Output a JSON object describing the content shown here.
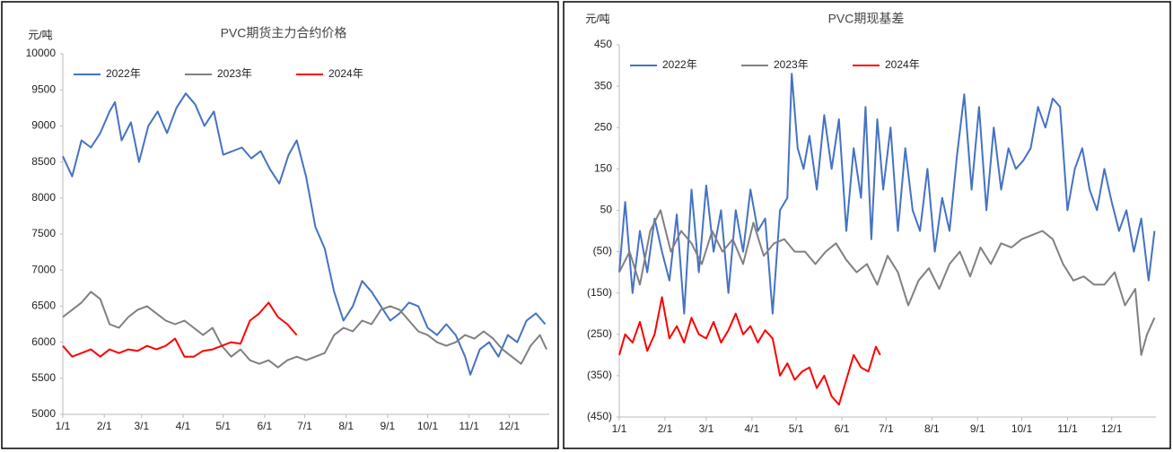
{
  "chart_data": [
    {
      "type": "line",
      "title": "PVC期货主力合约价格",
      "y_label": "元/吨",
      "xlim": [
        1,
        365
      ],
      "xticks": [
        {
          "value": 1,
          "label": "1/1"
        },
        {
          "value": 32,
          "label": "2/1"
        },
        {
          "value": 60,
          "label": "3/1"
        },
        {
          "value": 91,
          "label": "4/1"
        },
        {
          "value": 121,
          "label": "5/1"
        },
        {
          "value": 152,
          "label": "6/1"
        },
        {
          "value": 182,
          "label": "7/1"
        },
        {
          "value": 213,
          "label": "8/1"
        },
        {
          "value": 244,
          "label": "9/1"
        },
        {
          "value": 274,
          "label": "10/1"
        },
        {
          "value": 305,
          "label": "11/1"
        },
        {
          "value": 335,
          "label": "12/1"
        }
      ],
      "ylim": [
        5000,
        10000
      ],
      "yticks": [
        5000,
        5500,
        6000,
        6500,
        7000,
        7500,
        8000,
        8500,
        9000,
        9500,
        10000
      ],
      "grid": false,
      "legend": "top-left",
      "series": [
        {
          "name": "2022年",
          "color": "#4472c4",
          "x": [
            1,
            8,
            15,
            22,
            29,
            36,
            40,
            45,
            52,
            58,
            65,
            72,
            79,
            86,
            93,
            100,
            107,
            114,
            121,
            128,
            135,
            142,
            149,
            156,
            163,
            170,
            176,
            183,
            190,
            197,
            204,
            211,
            218,
            225,
            232,
            239,
            246,
            253,
            260,
            267,
            274,
            281,
            288,
            295,
            302,
            306,
            313,
            320,
            327,
            334,
            341,
            348,
            355,
            362
          ],
          "values": [
            8580,
            8300,
            8800,
            8700,
            8900,
            9200,
            9330,
            8800,
            9050,
            8500,
            9000,
            9200,
            8900,
            9250,
            9450,
            9300,
            9000,
            9200,
            8600,
            8650,
            8700,
            8550,
            8650,
            8400,
            8200,
            8600,
            8800,
            8300,
            7600,
            7300,
            6700,
            6300,
            6500,
            6850,
            6700,
            6500,
            6300,
            6400,
            6550,
            6500,
            6200,
            6100,
            6250,
            6100,
            5800,
            5550,
            5900,
            6000,
            5800,
            6100,
            6000,
            6300,
            6400,
            6250
          ]
        },
        {
          "name": "2023年",
          "color": "#808080",
          "x": [
            1,
            8,
            15,
            22,
            29,
            36,
            43,
            50,
            57,
            64,
            71,
            78,
            85,
            92,
            99,
            106,
            113,
            120,
            127,
            134,
            141,
            148,
            155,
            162,
            169,
            176,
            183,
            190,
            197,
            204,
            211,
            218,
            225,
            232,
            239,
            246,
            253,
            260,
            267,
            274,
            281,
            288,
            295,
            302,
            309,
            316,
            323,
            330,
            337,
            344,
            351,
            358,
            363
          ],
          "values": [
            6350,
            6450,
            6550,
            6700,
            6600,
            6250,
            6200,
            6350,
            6450,
            6500,
            6400,
            6300,
            6250,
            6300,
            6200,
            6100,
            6200,
            5950,
            5800,
            5900,
            5750,
            5700,
            5750,
            5650,
            5750,
            5800,
            5750,
            5800,
            5850,
            6100,
            6200,
            6150,
            6300,
            6250,
            6450,
            6500,
            6450,
            6300,
            6150,
            6100,
            6000,
            5950,
            6000,
            6100,
            6050,
            6150,
            6050,
            5900,
            5800,
            5700,
            5950,
            6100,
            5900
          ]
        },
        {
          "name": "2024年",
          "color": "#ff0000",
          "x": [
            1,
            8,
            15,
            22,
            29,
            36,
            43,
            50,
            57,
            64,
            71,
            78,
            85,
            92,
            99,
            106,
            113,
            120,
            127,
            134,
            141,
            148,
            155,
            162,
            169,
            176
          ],
          "values": [
            5950,
            5800,
            5850,
            5900,
            5800,
            5900,
            5850,
            5900,
            5880,
            5950,
            5900,
            5950,
            6050,
            5800,
            5800,
            5880,
            5900,
            5950,
            6000,
            5980,
            6300,
            6400,
            6550,
            6350,
            6250,
            6100
          ]
        }
      ]
    },
    {
      "type": "line",
      "title": "PVC期现基差",
      "y_label": "元/吨",
      "xlim": [
        1,
        365
      ],
      "xticks": [
        {
          "value": 1,
          "label": "1/1"
        },
        {
          "value": 32,
          "label": "2/1"
        },
        {
          "value": 60,
          "label": "3/1"
        },
        {
          "value": 91,
          "label": "4/1"
        },
        {
          "value": 121,
          "label": "5/1"
        },
        {
          "value": 152,
          "label": "6/1"
        },
        {
          "value": 182,
          "label": "7/1"
        },
        {
          "value": 213,
          "label": "8/1"
        },
        {
          "value": 244,
          "label": "9/1"
        },
        {
          "value": 274,
          "label": "10/1"
        },
        {
          "value": 305,
          "label": "11/1"
        },
        {
          "value": 335,
          "label": "12/1"
        }
      ],
      "ylim": [
        -450,
        450
      ],
      "yticks": [
        {
          "value": -450,
          "label": "(450)"
        },
        {
          "value": -350,
          "label": "(350)"
        },
        {
          "value": -250,
          "label": "(250)"
        },
        {
          "value": -150,
          "label": "(150)"
        },
        {
          "value": -50,
          "label": "(50)"
        },
        50,
        150,
        250,
        350,
        450
      ],
      "grid": false,
      "legend": "top-left",
      "series": [
        {
          "name": "2022年",
          "color": "#4472c4",
          "x": [
            1,
            5,
            10,
            15,
            20,
            25,
            30,
            35,
            40,
            45,
            50,
            55,
            60,
            65,
            70,
            75,
            80,
            85,
            90,
            95,
            100,
            105,
            110,
            115,
            118,
            122,
            126,
            130,
            135,
            140,
            145,
            150,
            155,
            160,
            165,
            168,
            172,
            176,
            180,
            185,
            190,
            195,
            200,
            205,
            210,
            215,
            220,
            225,
            230,
            235,
            240,
            245,
            250,
            255,
            260,
            265,
            270,
            275,
            280,
            285,
            290,
            295,
            300,
            305,
            310,
            315,
            320,
            325,
            330,
            335,
            340,
            345,
            350,
            355,
            360,
            364
          ],
          "values": [
            -100,
            70,
            -150,
            0,
            -100,
            30,
            -50,
            -120,
            40,
            -200,
            100,
            -100,
            110,
            -50,
            50,
            -150,
            50,
            -50,
            100,
            0,
            30,
            -200,
            50,
            80,
            380,
            200,
            150,
            230,
            100,
            280,
            150,
            270,
            0,
            200,
            80,
            300,
            -20,
            270,
            100,
            250,
            0,
            200,
            50,
            0,
            150,
            -50,
            80,
            0,
            180,
            330,
            100,
            300,
            50,
            250,
            100,
            200,
            150,
            170,
            200,
            300,
            250,
            320,
            300,
            50,
            150,
            200,
            100,
            50,
            150,
            70,
            0,
            50,
            -50,
            30,
            -120,
            0
          ]
        },
        {
          "name": "2023年",
          "color": "#808080",
          "x": [
            1,
            8,
            15,
            22,
            29,
            36,
            43,
            50,
            57,
            64,
            71,
            78,
            85,
            92,
            99,
            106,
            113,
            120,
            127,
            134,
            141,
            148,
            155,
            162,
            169,
            176,
            183,
            190,
            197,
            204,
            211,
            218,
            225,
            232,
            239,
            246,
            253,
            260,
            267,
            274,
            281,
            288,
            295,
            302,
            309,
            316,
            323,
            330,
            337,
            344,
            351,
            355,
            359,
            364
          ],
          "values": [
            -100,
            -50,
            -130,
            0,
            50,
            -50,
            0,
            -30,
            -80,
            0,
            -50,
            -20,
            -80,
            20,
            -60,
            -30,
            -20,
            -50,
            -50,
            -80,
            -50,
            -30,
            -70,
            -100,
            -80,
            -130,
            -60,
            -100,
            -180,
            -120,
            -90,
            -140,
            -80,
            -50,
            -110,
            -40,
            -80,
            -30,
            -40,
            -20,
            -10,
            0,
            -20,
            -80,
            -120,
            -110,
            -130,
            -130,
            -100,
            -180,
            -140,
            -300,
            -250,
            -210
          ]
        },
        {
          "name": "2024年",
          "color": "#ff0000",
          "x": [
            1,
            5,
            10,
            15,
            20,
            25,
            30,
            35,
            40,
            45,
            50,
            55,
            60,
            65,
            70,
            75,
            80,
            85,
            90,
            95,
            100,
            105,
            110,
            115,
            120,
            125,
            130,
            135,
            140,
            145,
            150,
            155,
            160,
            165,
            170,
            175,
            178
          ],
          "values": [
            -300,
            -250,
            -270,
            -220,
            -290,
            -250,
            -160,
            -260,
            -230,
            -270,
            -210,
            -250,
            -260,
            -220,
            -270,
            -240,
            -200,
            -250,
            -230,
            -270,
            -240,
            -260,
            -350,
            -320,
            -360,
            -340,
            -330,
            -380,
            -350,
            -400,
            -420,
            -360,
            -300,
            -330,
            -340,
            -280,
            -300
          ]
        }
      ]
    }
  ]
}
